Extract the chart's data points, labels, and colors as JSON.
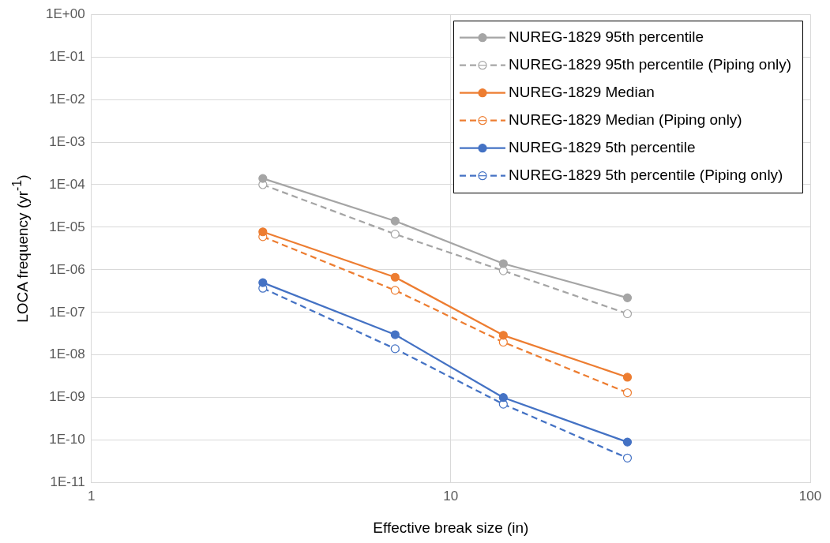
{
  "chart_data": {
    "type": "line",
    "xlabel": "Effective break size (in)",
    "ylabel": "LOCA frequency (yr$^{-1}$)",
    "log": "xy",
    "grid": true,
    "legend": "top right",
    "marker": "circle",
    "xlim": [
      1,
      100
    ],
    "xticks": [
      1,
      10,
      100
    ],
    "ylim": [
      1e-11,
      1
    ],
    "yticks": [
      {
        "value": 1e-11,
        "label": "1E-11"
      },
      {
        "value": 1e-10,
        "label": "1E-10"
      },
      {
        "value": 1e-09,
        "label": "1E-09"
      },
      {
        "value": 1e-08,
        "label": "1E-08"
      },
      {
        "value": 1e-07,
        "label": "1E-07"
      },
      {
        "value": 1e-06,
        "label": "1E-06"
      },
      {
        "value": 1e-05,
        "label": "1E-05"
      },
      {
        "value": 0.0001,
        "label": "1E-04"
      },
      {
        "value": 0.001,
        "label": "1E-03"
      },
      {
        "value": 0.01,
        "label": "1E-02"
      },
      {
        "value": 0.1,
        "label": "1E-01"
      },
      {
        "value": 1,
        "label": "1E+00"
      }
    ],
    "x": [
      3,
      7,
      14,
      31
    ],
    "series": [
      {
        "name": "NUREG-1829 95th percentile",
        "color": "#a5a5a5",
        "line_style": "solid",
        "values": [
          0.00014,
          1.4e-05,
          1.4e-06,
          2.2e-07
        ]
      },
      {
        "name": "NUREG-1829 95th percentile (Piping only)",
        "color": "#a5a5a5",
        "line_style": "dashed",
        "values": [
          0.0001,
          6.9e-06,
          9.5e-07,
          9.3e-08
        ]
      },
      {
        "name": "NUREG-1829 Median",
        "color": "#ed7d31",
        "line_style": "solid",
        "values": [
          7.8e-06,
          6.7e-07,
          2.9e-08,
          3e-09
        ]
      },
      {
        "name": "NUREG-1829 Median (Piping only)",
        "color": "#ed7d31",
        "line_style": "dashed",
        "values": [
          6e-06,
          3.3e-07,
          2e-08,
          1.3e-09
        ]
      },
      {
        "name": "NUREG-1829 5th percentile",
        "color": "#4472c4",
        "line_style": "solid",
        "values": [
          5e-07,
          3e-08,
          1e-09,
          9e-11
        ]
      },
      {
        "name": "NUREG-1829 5th percentile (Piping only)",
        "color": "#4472c4",
        "line_style": "dashed",
        "values": [
          3.7e-07,
          1.4e-08,
          7e-10,
          3.8e-11
        ]
      }
    ]
  }
}
